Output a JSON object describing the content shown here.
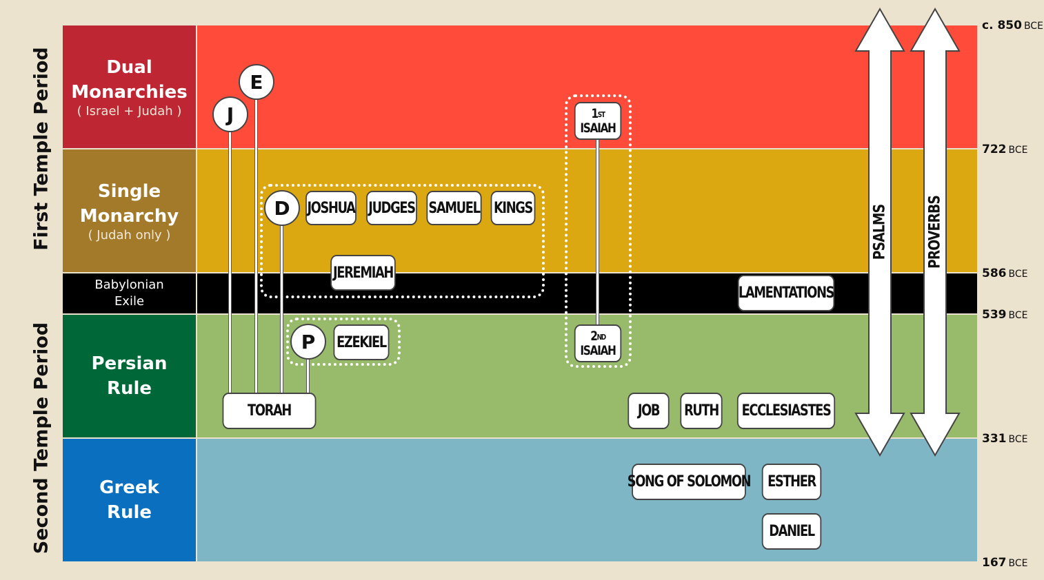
{
  "periods": {
    "first": "First Temple Period",
    "second": "Second Temple Period"
  },
  "eras": [
    {
      "name": "Dual Monarchies",
      "line1": "Dual",
      "line2": "Monarchies",
      "sub": "( Israel + Judah )",
      "color": "#bf2633",
      "band_color": "#ff4c3a"
    },
    {
      "name": "Single Monarchy",
      "line1": "Single",
      "line2": "Monarchy",
      "sub": "( Judah only )",
      "color": "#a27a29",
      "band_color": "#dba812"
    },
    {
      "name": "Babylonian Exile",
      "line1": "Babylonian",
      "line2": "Exile",
      "sub": "",
      "color": "#000000",
      "band_color": "#000000"
    },
    {
      "name": "Persian Rule",
      "line1": "Persian",
      "line2": "Rule",
      "sub": "",
      "color": "#006838",
      "band_color": "#97bb6a"
    },
    {
      "name": "Greek Rule",
      "line1": "Greek",
      "line2": "Rule",
      "sub": "",
      "color": "#0a6fbf",
      "band_color": "#7fb6c6"
    }
  ],
  "dates": [
    {
      "value": "c. 850",
      "unit": "BCE"
    },
    {
      "value": "722",
      "unit": "BCE"
    },
    {
      "value": "586",
      "unit": "BCE"
    },
    {
      "value": "539",
      "unit": "BCE"
    },
    {
      "value": "331",
      "unit": "BCE"
    },
    {
      "value": "167",
      "unit": "BCE"
    }
  ],
  "sources": {
    "j": "J",
    "e": "E",
    "d": "D",
    "p": "P"
  },
  "books": {
    "joshua": "JOSHUA",
    "judges": "JUDGES",
    "samuel": "SAMUEL",
    "kings": "KINGS",
    "jeremiah": "JEREMIAH",
    "ezekiel": "EZEKIEL",
    "torah": "TORAH",
    "lamentations": "LAMENTATIONS",
    "job": "JOB",
    "ruth": "RUTH",
    "ecclesiastes": "ECCLESIASTES",
    "song_of_solomon": "SONG OF SOLOMON",
    "esther": "ESTHER",
    "daniel": "DANIEL",
    "first_isaiah": {
      "num": "1",
      "sup": "ST",
      "name": "ISAIAH"
    },
    "second_isaiah": {
      "num": "2",
      "sup": "ND",
      "name": "ISAIAH"
    }
  },
  "arrows": {
    "psalms": "PSALMS",
    "proverbs": "PROVERBS"
  }
}
